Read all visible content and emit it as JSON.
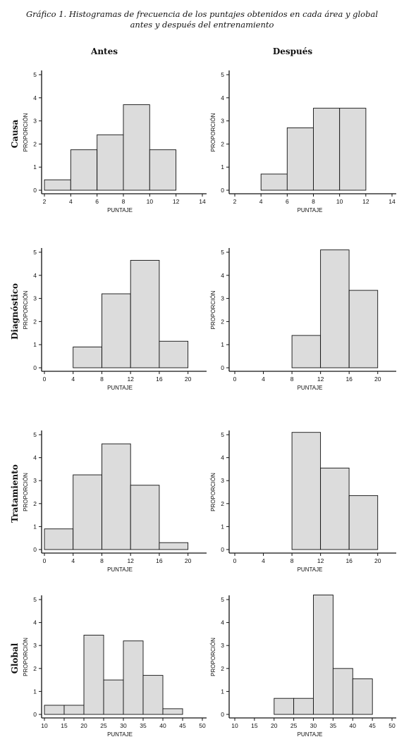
{
  "caption": {
    "line1": "Gráfico 1. Histogramas de frecuencia de los puntajes obtenidos en cada área y global",
    "line2": "antes y después del entrenamiento"
  },
  "columns": [
    "Antes",
    "Después"
  ],
  "rows": [
    "Causa",
    "Diagnóstico",
    "Tratamiento",
    "Global"
  ],
  "chart_data": [
    {
      "type": "bar",
      "row": "Causa",
      "column": "Antes",
      "xlabel": "PUNTAJE",
      "ylabel": "PROPORCIÓN",
      "xlim": [
        2,
        14
      ],
      "xticks": [
        2,
        4,
        6,
        8,
        10,
        12,
        14
      ],
      "ylim": [
        0,
        5
      ],
      "yticks": [
        0,
        1,
        2,
        3,
        4,
        5
      ],
      "bins": [
        [
          2,
          4
        ],
        [
          4,
          6
        ],
        [
          6,
          8
        ],
        [
          8,
          10
        ],
        [
          10,
          12
        ]
      ],
      "values": [
        0.45,
        1.75,
        2.4,
        3.7,
        1.75
      ]
    },
    {
      "type": "bar",
      "row": "Causa",
      "column": "Después",
      "xlabel": "PUNTAJE",
      "ylabel": "PROPORCIÓN",
      "xlim": [
        2,
        14
      ],
      "xticks": [
        2,
        4,
        6,
        8,
        10,
        12,
        14
      ],
      "ylim": [
        0,
        5
      ],
      "yticks": [
        0,
        1,
        2,
        3,
        4,
        5
      ],
      "bins": [
        [
          4,
          6
        ],
        [
          6,
          8
        ],
        [
          8,
          10
        ],
        [
          10,
          12
        ]
      ],
      "values": [
        0.7,
        2.7,
        3.55,
        3.55
      ]
    },
    {
      "type": "bar",
      "row": "Diagnóstico",
      "column": "Antes",
      "xlabel": "PUNTAJE",
      "ylabel": "PROPORCIÓN",
      "xlim": [
        0,
        22
      ],
      "xticks": [
        0,
        4,
        8,
        12,
        16,
        20
      ],
      "ylim": [
        0,
        5
      ],
      "yticks": [
        0,
        1,
        2,
        3,
        4,
        5
      ],
      "bins": [
        [
          4,
          8
        ],
        [
          8,
          12
        ],
        [
          12,
          16
        ],
        [
          16,
          20
        ]
      ],
      "values": [
        0.9,
        3.2,
        4.65,
        1.15
      ]
    },
    {
      "type": "bar",
      "row": "Diagnóstico",
      "column": "Después",
      "xlabel": "PUNTAJE",
      "ylabel": "PROPORCIÓN",
      "xlim": [
        0,
        22
      ],
      "xticks": [
        0,
        4,
        8,
        12,
        16,
        20
      ],
      "ylim": [
        0,
        5
      ],
      "yticks": [
        0,
        1,
        2,
        3,
        4,
        5
      ],
      "bins": [
        [
          8,
          12
        ],
        [
          12,
          16
        ],
        [
          16,
          20
        ]
      ],
      "values": [
        1.4,
        5.1,
        3.35
      ]
    },
    {
      "type": "bar",
      "row": "Tratamiento",
      "column": "Antes",
      "xlabel": "PUNTAJE",
      "ylabel": "PROPORCIÓN",
      "xlim": [
        0,
        22
      ],
      "xticks": [
        0,
        4,
        8,
        12,
        16,
        20
      ],
      "ylim": [
        0,
        5
      ],
      "yticks": [
        0,
        1,
        2,
        3,
        4,
        5
      ],
      "bins": [
        [
          0,
          4
        ],
        [
          4,
          8
        ],
        [
          8,
          12
        ],
        [
          12,
          16
        ],
        [
          16,
          20
        ]
      ],
      "values": [
        0.9,
        3.25,
        4.6,
        2.8,
        0.3
      ]
    },
    {
      "type": "bar",
      "row": "Tratamiento",
      "column": "Después",
      "xlabel": "PUNTAJE",
      "ylabel": "PROPORCIÓN",
      "xlim": [
        0,
        22
      ],
      "xticks": [
        0,
        4,
        8,
        12,
        16,
        20
      ],
      "ylim": [
        0,
        5
      ],
      "yticks": [
        0,
        1,
        2,
        3,
        4,
        5
      ],
      "bins": [
        [
          8,
          12
        ],
        [
          12,
          16
        ],
        [
          16,
          20
        ]
      ],
      "values": [
        5.1,
        3.55,
        2.35
      ]
    },
    {
      "type": "bar",
      "row": "Global",
      "column": "Antes",
      "xlabel": "PUNTAJE",
      "ylabel": "PROPORCIÓN",
      "xlim": [
        10,
        50
      ],
      "xticks": [
        10,
        15,
        20,
        25,
        30,
        35,
        40,
        45,
        50
      ],
      "ylim": [
        0,
        5
      ],
      "yticks": [
        0,
        1,
        2,
        3,
        4,
        5
      ],
      "bins": [
        [
          10,
          15
        ],
        [
          15,
          20
        ],
        [
          20,
          25
        ],
        [
          25,
          30
        ],
        [
          30,
          35
        ],
        [
          35,
          40
        ],
        [
          40,
          45
        ]
      ],
      "values": [
        0.4,
        0.4,
        3.45,
        1.5,
        3.2,
        1.7,
        0.25
      ]
    },
    {
      "type": "bar",
      "row": "Global",
      "column": "Después",
      "xlabel": "PUNTAJE",
      "ylabel": "PROPORCIÓN",
      "xlim": [
        10,
        50
      ],
      "xticks": [
        10,
        15,
        20,
        25,
        30,
        35,
        40,
        45,
        50
      ],
      "ylim": [
        0,
        5
      ],
      "yticks": [
        0,
        1,
        2,
        3,
        4,
        5
      ],
      "bins": [
        [
          20,
          25
        ],
        [
          25,
          30
        ],
        [
          30,
          35
        ],
        [
          35,
          40
        ],
        [
          40,
          45
        ]
      ],
      "values": [
        0.7,
        0.7,
        5.2,
        2.0,
        1.55
      ]
    }
  ],
  "colors": {
    "bar_fill": "#dcdcdc",
    "bar_stroke": "#111111",
    "axis": "#111111"
  }
}
